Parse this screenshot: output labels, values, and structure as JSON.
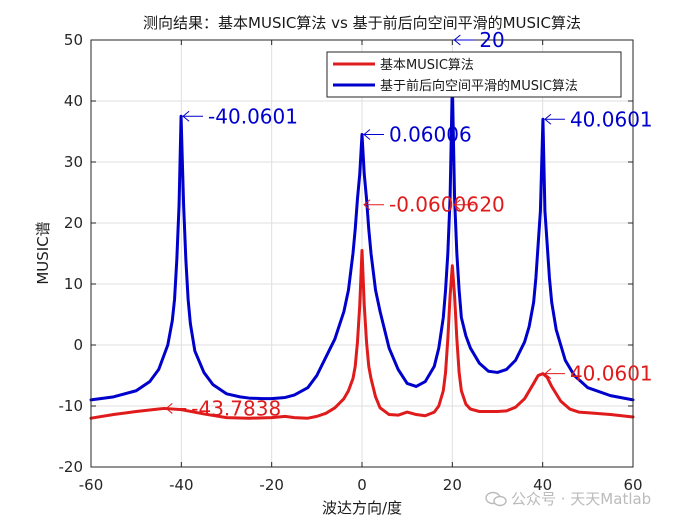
{
  "chart_data": {
    "type": "line",
    "title": "测向结果：基本MUSIC算法 vs 基于前后向空间平滑的MUSIC算法",
    "xlabel": "波达方向/度",
    "ylabel": "MUSIC谱",
    "xlim": [
      -60,
      60
    ],
    "ylim": [
      -20,
      50
    ],
    "xticks": [
      -60,
      -40,
      -20,
      0,
      20,
      40,
      60
    ],
    "yticks": [
      -20,
      -10,
      0,
      10,
      20,
      30,
      40,
      50
    ],
    "grid": true,
    "legend_position": "top-right",
    "series": [
      {
        "name": "基本MUSIC算法",
        "color": "#e01b1b",
        "x": [
          -60,
          -55,
          -50,
          -45,
          -43.78,
          -40,
          -35,
          -30,
          -25,
          -20,
          -17,
          -15,
          -12,
          -10,
          -8,
          -6,
          -4,
          -3,
          -2,
          -1.5,
          -1,
          -0.5,
          0,
          0.5,
          1,
          1.5,
          2,
          3,
          4,
          6,
          8,
          10,
          12,
          14,
          16,
          17,
          18,
          18.5,
          19,
          19.5,
          20,
          20.5,
          21,
          21.5,
          22,
          23,
          24,
          26,
          28,
          30,
          32,
          34,
          36,
          38,
          39,
          40.06,
          41,
          42,
          44,
          46,
          48,
          50,
          55,
          60
        ],
        "y": [
          -12,
          -11.4,
          -10.9,
          -10.5,
          -10.4,
          -10.6,
          -11.3,
          -11.9,
          -12,
          -11.9,
          -11.7,
          -11.9,
          -12,
          -11.7,
          -11.2,
          -10.3,
          -8.8,
          -7.5,
          -5.5,
          -3.5,
          0.5,
          6.5,
          15.5,
          6.5,
          0.5,
          -3.5,
          -5.5,
          -8.5,
          -10.3,
          -11.4,
          -11.5,
          -11,
          -11.4,
          -11.6,
          -11,
          -10,
          -7.5,
          -4.5,
          1,
          8,
          13,
          8,
          1,
          -4.5,
          -7.5,
          -9.7,
          -10.5,
          -10.9,
          -10.9,
          -10.9,
          -10.8,
          -10.2,
          -8.8,
          -6.3,
          -5,
          -4.7,
          -5.3,
          -6.8,
          -9.2,
          -10.5,
          -11,
          -11.1,
          -11.4,
          -11.8
        ]
      },
      {
        "name": "基于前后向空间平滑的MUSIC算法",
        "color": "#0000cc",
        "x": [
          -60,
          -55,
          -50,
          -47,
          -45,
          -43,
          -42,
          -41.5,
          -41,
          -40.5,
          -40.06,
          -39.5,
          -39,
          -38.5,
          -38,
          -37,
          -35,
          -33,
          -30,
          -27,
          -25,
          -22,
          -20,
          -17,
          -15,
          -12,
          -10,
          -8,
          -6,
          -4,
          -3,
          -2,
          -1.5,
          -1,
          -0.5,
          0,
          0.5,
          1,
          1.5,
          2,
          3,
          4,
          6,
          8,
          10,
          12,
          14,
          16,
          17,
          18,
          18.5,
          19,
          19.5,
          20,
          20.5,
          21,
          21.5,
          22,
          23,
          24,
          26,
          28,
          30,
          32,
          34,
          36,
          37,
          38,
          38.5,
          39,
          39.5,
          40.06,
          40.5,
          41,
          41.5,
          42,
          43,
          45,
          47,
          50,
          55,
          60
        ],
        "y": [
          -9,
          -8.5,
          -7.5,
          -6,
          -4,
          0,
          4,
          7.5,
          14,
          23,
          37.5,
          23,
          14,
          7.5,
          3.5,
          -1,
          -4.5,
          -6.5,
          -8,
          -8.5,
          -8.7,
          -8.8,
          -8.8,
          -8.6,
          -8.2,
          -7,
          -5,
          -2,
          1,
          5.5,
          9,
          15,
          19,
          24,
          28,
          34.5,
          28,
          24,
          19,
          15,
          9,
          5.5,
          -0.5,
          -4,
          -6.3,
          -6.8,
          -6,
          -3.5,
          -0.5,
          4.5,
          9,
          15,
          24,
          43,
          24,
          15,
          9,
          4.5,
          1.5,
          -0.5,
          -3,
          -4.3,
          -4.5,
          -4,
          -2.5,
          0.5,
          3,
          7,
          11,
          16.5,
          22,
          37,
          22,
          16.5,
          11,
          7,
          2.5,
          -2.5,
          -5,
          -7,
          -8.3,
          -9
        ]
      }
    ],
    "annotations": [
      {
        "text": "-40.0601",
        "x": -40.06,
        "y": 37.5,
        "color": "#0000cc"
      },
      {
        "text": "0.06006",
        "x": 0,
        "y": 34.5,
        "color": "#0000cc"
      },
      {
        "text": "20",
        "x": 20,
        "y": 50,
        "color": "#0000cc"
      },
      {
        "text": "40.0601",
        "x": 40.06,
        "y": 37,
        "color": "#0000cc"
      },
      {
        "text": "-0.06006",
        "x": 0,
        "y": 23,
        "color": "#e01b1b"
      },
      {
        "text": "20",
        "x": 20,
        "y": 23,
        "color": "#e01b1b"
      },
      {
        "text": "-43.7838",
        "x": -43.78,
        "y": -10.4,
        "color": "#e01b1b"
      },
      {
        "text": "40.0601",
        "x": 40.06,
        "y": -4.7,
        "color": "#e01b1b"
      }
    ]
  },
  "watermark": "公众号 · 天天Matlab"
}
